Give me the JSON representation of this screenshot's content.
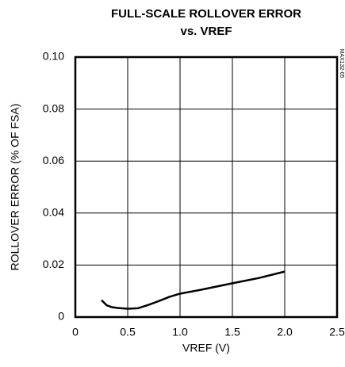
{
  "chart_data": {
    "type": "line",
    "title": "FULL-SCALE ROLLOVER ERROR",
    "subtitle": "vs. VREF",
    "x_label": "VREF (V)",
    "y_label": "ROLLOVER ERROR (% OF FSA)",
    "annotation": "MAX132-05",
    "x": [
      0.25,
      0.3,
      0.35,
      0.4,
      0.5,
      0.6,
      0.7,
      0.8,
      0.9,
      1.0,
      1.2,
      1.5,
      1.75,
      2.0
    ],
    "series": [
      {
        "name": "Rollover error",
        "color": "#000000",
        "values": [
          0.0065,
          0.0045,
          0.0038,
          0.0035,
          0.0032,
          0.0034,
          0.0047,
          0.0062,
          0.0078,
          0.009,
          0.0105,
          0.013,
          0.015,
          0.0175
        ]
      }
    ],
    "xlim": [
      0,
      2.5
    ],
    "xticks": [
      0,
      0.5,
      {
        "value": 1,
        "label": "1.0"
      },
      1.5,
      {
        "value": 2,
        "label": "2.0"
      },
      2.5
    ],
    "ylim": [
      0,
      0.1
    ],
    "yticks": [
      0,
      0.02,
      0.04,
      0.06,
      0.08,
      {
        "value": 0.1,
        "label": "0.10"
      }
    ],
    "grid": true
  }
}
